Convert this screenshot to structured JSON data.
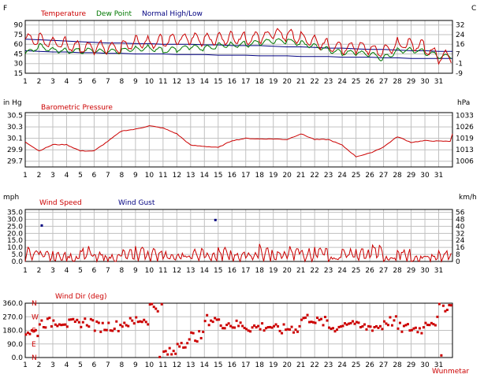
{
  "x_ticks": [
    "1",
    "2",
    "3",
    "4",
    "5",
    "6",
    "7",
    "8",
    "9",
    "10",
    "11",
    "12",
    "13",
    "14",
    "15",
    "16",
    "17",
    "18",
    "19",
    "20",
    "21",
    "22",
    "23",
    "24",
    "25",
    "26",
    "27",
    "28",
    "29",
    "30",
    "31"
  ],
  "colors": {
    "red": "#cc0000",
    "green": "#007700",
    "navy": "#000080",
    "grid": "#c0c0c0"
  },
  "panels": {
    "temp": {
      "unit_left": "F",
      "unit_right": "C",
      "legend": [
        "Temperature",
        "Dew Point",
        "Normal High/Low"
      ],
      "ticks_left": [
        "90",
        "75",
        "60",
        "45",
        "30",
        "15"
      ],
      "ticks_right": [
        "32",
        "24",
        "16",
        "7",
        "-1",
        "-9"
      ]
    },
    "baro": {
      "unit_left": "in Hg",
      "unit_right": "hPa",
      "legend": [
        "Barometric Pressure"
      ],
      "ticks_left": [
        "30.5",
        "30.3",
        "30.1",
        "29.9",
        "29.7"
      ],
      "ticks_right": [
        "1033",
        "1026",
        "1019",
        "1013",
        "1006"
      ]
    },
    "wind": {
      "unit_left": "mph",
      "unit_right": "km/h",
      "legend": [
        "Wind Speed",
        "Wind Gust"
      ],
      "ticks_left": [
        "35.0",
        "30.0",
        "25.0",
        "20.0",
        "15.0",
        "10.0",
        "5.0",
        "0.0"
      ],
      "ticks_right": [
        "56",
        "48",
        "40",
        "32",
        "24",
        "16",
        "8",
        "0"
      ]
    },
    "dir": {
      "legend": [
        "Wind Dir (deg)"
      ],
      "ticks_left": [
        "360.0",
        "270.0",
        "180.0",
        "90.0",
        "0.0"
      ],
      "compass": [
        "N",
        "W",
        "S",
        "E",
        "N"
      ]
    }
  },
  "watermark": "Wunmetar",
  "chart_data": [
    {
      "type": "line",
      "title": "Temperature / Dew Point / Normal High/Low",
      "x": [
        1,
        2,
        3,
        4,
        5,
        6,
        7,
        8,
        9,
        10,
        11,
        12,
        13,
        14,
        15,
        16,
        17,
        18,
        19,
        20,
        21,
        22,
        23,
        24,
        25,
        26,
        27,
        28,
        29,
        30,
        31
      ],
      "ylabel": "F",
      "ylim": [
        15,
        97
      ],
      "series": [
        {
          "name": "Temperature",
          "values": [
            68,
            68,
            65,
            60,
            55,
            55,
            55,
            55,
            65,
            64,
            66,
            66,
            67,
            68,
            69,
            72,
            70,
            70,
            75,
            74,
            70,
            65,
            60,
            55,
            55,
            52,
            48,
            60,
            62,
            55,
            40
          ]
        },
        {
          "name": "Dew Point",
          "values": [
            45,
            57,
            52,
            50,
            50,
            50,
            48,
            50,
            53,
            55,
            50,
            52,
            56,
            54,
            58,
            60,
            60,
            62,
            64,
            65,
            62,
            58,
            52,
            47,
            47,
            44,
            38,
            50,
            52,
            48,
            41
          ]
        },
        {
          "name": "Normal High/Low",
          "values": [
            68,
            67,
            66,
            65,
            64,
            63,
            62,
            62,
            61,
            61,
            60,
            60,
            60,
            59,
            59,
            58,
            58,
            58,
            57,
            56,
            56,
            55,
            54,
            54,
            53,
            52,
            52,
            51,
            50,
            50,
            49
          ]
        },
        {
          "name": "Normal High/Low",
          "values": [
            50,
            49,
            48,
            48,
            47,
            47,
            46,
            46,
            45,
            45,
            45,
            44,
            44,
            44,
            43,
            43,
            43,
            42,
            42,
            42,
            41,
            41,
            41,
            40,
            40,
            40,
            39,
            39,
            38,
            38,
            38
          ]
        }
      ]
    },
    {
      "type": "line",
      "title": "Barometric Pressure",
      "x": [
        1,
        2,
        3,
        4,
        5,
        6,
        7,
        8,
        9,
        10,
        11,
        12,
        13,
        14,
        15,
        16,
        17,
        18,
        19,
        20,
        21,
        22,
        23,
        24,
        25,
        26,
        27,
        28,
        29,
        30,
        31
      ],
      "ylabel": "in Hg",
      "ylim": [
        29.6,
        30.55
      ],
      "series": [
        {
          "name": "Barometric Pressure",
          "values": [
            30.04,
            29.88,
            29.99,
            29.99,
            29.88,
            29.88,
            30.05,
            30.23,
            30.26,
            30.32,
            30.28,
            30.18,
            29.98,
            29.96,
            29.94,
            30.06,
            30.1,
            30.09,
            30.09,
            30.08,
            30.18,
            30.08,
            30.08,
            29.98,
            29.78,
            29.84,
            29.95,
            30.13,
            30.03,
            30.06,
            30.05
          ]
        }
      ]
    },
    {
      "type": "line",
      "title": "Wind Speed / Wind Gust",
      "x": [
        1,
        2,
        3,
        4,
        5,
        6,
        7,
        8,
        9,
        10,
        11,
        12,
        13,
        14,
        15,
        16,
        17,
        18,
        19,
        20,
        21,
        22,
        23,
        24,
        25,
        26,
        27,
        28,
        29,
        30,
        31
      ],
      "ylabel": "mph",
      "ylim": [
        0,
        37
      ],
      "series": [
        {
          "name": "Wind Speed",
          "values": [
            9,
            6,
            6,
            4,
            9,
            5,
            4,
            7,
            10,
            8,
            6,
            5,
            8,
            5,
            9,
            6,
            7,
            11,
            6,
            9,
            8,
            11,
            3,
            8,
            8,
            12,
            2,
            8,
            3,
            5,
            8
          ]
        },
        {
          "name": "Wind Gust",
          "points": [
            [
              2.2,
              25.6
            ],
            [
              14.8,
              29.5
            ]
          ]
        }
      ]
    },
    {
      "type": "scatter",
      "title": "Wind Dir (deg)",
      "x": [
        1,
        2,
        3,
        4,
        5,
        6,
        7,
        8,
        9,
        10,
        11,
        12,
        13,
        14,
        15,
        16,
        17,
        18,
        19,
        20,
        21,
        22,
        23,
        24,
        25,
        26,
        27,
        28,
        29,
        30,
        31
      ],
      "ylabel": "deg",
      "ylim": [
        0,
        360
      ],
      "series": [
        {
          "name": "Wind Dir (deg)",
          "values": [
            170,
            230,
            240,
            220,
            235,
            205,
            210,
            230,
            250,
            340,
            30,
            100,
            140,
            250,
            225,
            215,
            200,
            205,
            185,
            195,
            260,
            235,
            200,
            235,
            200,
            205,
            240,
            195,
            190,
            240,
            340
          ]
        }
      ]
    }
  ]
}
